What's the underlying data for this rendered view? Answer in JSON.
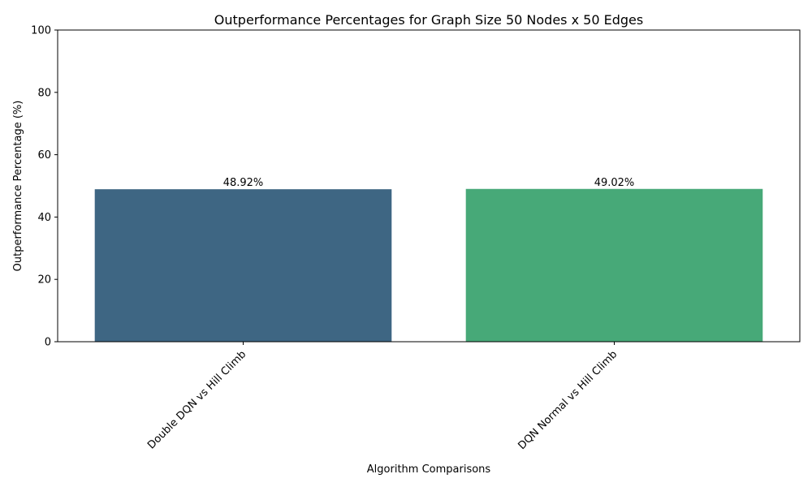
{
  "chart_data": {
    "type": "bar",
    "title": "Outperformance Percentages for Graph Size 50 Nodes x 50 Edges",
    "xlabel": "Algorithm Comparisons",
    "ylabel": "Outperformance Percentage (%)",
    "ylim": [
      0,
      100
    ],
    "yticks": [
      0,
      20,
      40,
      60,
      80,
      100
    ],
    "categories": [
      "Double DQN vs Hill Climb",
      "DQN Normal vs Hill Climb"
    ],
    "values": [
      48.92,
      49.02
    ],
    "data_labels": [
      "48.92%",
      "49.02%"
    ],
    "colors": [
      "#3e6683",
      "#47a978"
    ],
    "grid": false,
    "legend": "none",
    "xtick_rotation": 45
  }
}
